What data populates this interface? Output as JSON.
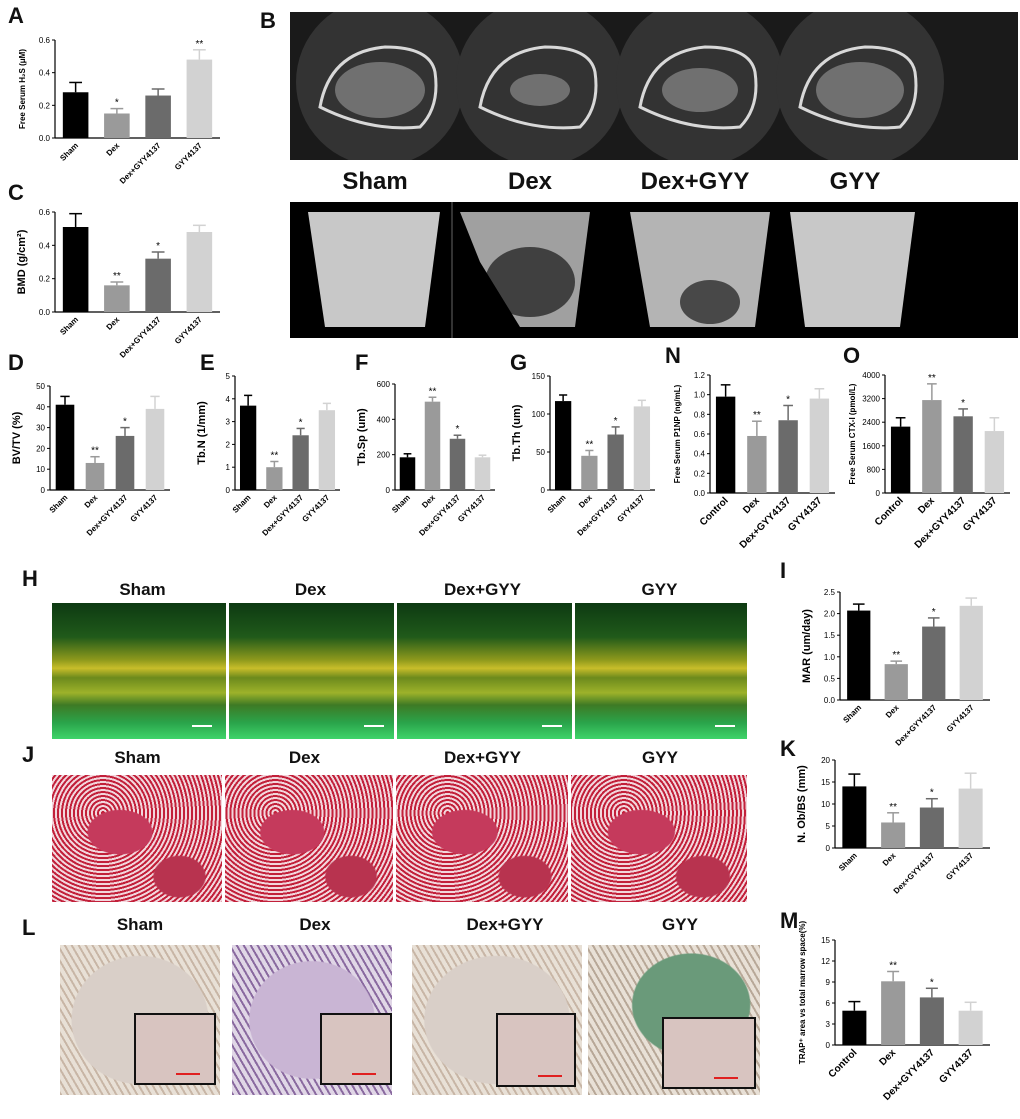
{
  "panel_letters": [
    "A",
    "B",
    "C",
    "D",
    "E",
    "F",
    "G",
    "N",
    "O",
    "H",
    "I",
    "J",
    "K",
    "L",
    "M"
  ],
  "ct_labels": [
    "Sham",
    "Dex",
    "Dex+GYY",
    "GYY"
  ],
  "image_rows": {
    "H": [
      "Sham",
      "Dex",
      "Dex+GYY",
      "GYY"
    ],
    "J": [
      "Sham",
      "Dex",
      "Dex+GYY",
      "GYY"
    ],
    "L": [
      "Sham",
      "Dex",
      "Dex+GYY",
      "GYY"
    ]
  },
  "colors": {
    "bar1": "#000000",
    "bar2": "#9a9a9a",
    "bar3": "#6b6b6b",
    "bar4": "#d2d2d2"
  },
  "chart_data": [
    {
      "id": "A",
      "type": "bar",
      "ylabel": "Free Serum H₂S (μM)",
      "categories": [
        "Sham",
        "Dex",
        "Dex+GYY4137",
        "GYY4137"
      ],
      "values": [
        0.28,
        0.15,
        0.26,
        0.48
      ],
      "errors": [
        0.06,
        0.03,
        0.04,
        0.06
      ],
      "sig": [
        "",
        "*",
        "",
        "**"
      ],
      "ylim": [
        0,
        0.6
      ],
      "yticks": [
        "0.0",
        "0.2",
        "0.4",
        "0.6"
      ]
    },
    {
      "id": "C",
      "type": "bar",
      "ylabel": "BMD (g/cm²)",
      "categories": [
        "Sham",
        "Dex",
        "Dex+GYY4137",
        "GYY4137"
      ],
      "values": [
        0.51,
        0.16,
        0.32,
        0.48
      ],
      "errors": [
        0.08,
        0.02,
        0.04,
        0.04
      ],
      "sig": [
        "",
        "**",
        "*",
        ""
      ],
      "ylim": [
        0,
        0.6
      ],
      "yticks": [
        "0.0",
        "0.2",
        "0.4",
        "0.6"
      ]
    },
    {
      "id": "D",
      "type": "bar",
      "ylabel": "BV/TV  (%)",
      "categories": [
        "Sham",
        "Dex",
        "Dex+GYY4137",
        "GYY4137"
      ],
      "values": [
        41,
        13,
        26,
        39
      ],
      "errors": [
        4,
        3,
        4,
        6
      ],
      "sig": [
        "",
        "**",
        "*",
        ""
      ],
      "ylim": [
        0,
        50
      ],
      "yticks": [
        "0",
        "10",
        "20",
        "30",
        "40",
        "50"
      ]
    },
    {
      "id": "E",
      "type": "bar",
      "ylabel": "Tb.N (1/mm)",
      "categories": [
        "Sham",
        "Dex",
        "Dex+GYY4137",
        "GYY4137"
      ],
      "values": [
        3.7,
        1.0,
        2.4,
        3.5
      ],
      "errors": [
        0.45,
        0.25,
        0.3,
        0.3
      ],
      "sig": [
        "",
        "**",
        "*",
        ""
      ],
      "ylim": [
        0,
        5
      ],
      "yticks": [
        "0",
        "1",
        "2",
        "3",
        "4",
        "5"
      ]
    },
    {
      "id": "F",
      "type": "bar",
      "ylabel": "Tb.Sp (um)",
      "categories": [
        "Sham",
        "Dex",
        "Dex+GYY4137",
        "GYY4137"
      ],
      "values": [
        185,
        500,
        290,
        185
      ],
      "errors": [
        20,
        25,
        20,
        12
      ],
      "sig": [
        "",
        "**",
        "*",
        ""
      ],
      "ylim": [
        0,
        600
      ],
      "yticks": [
        "0",
        "200",
        "400",
        "600"
      ]
    },
    {
      "id": "G",
      "type": "bar",
      "ylabel": "Tb.Th (um)",
      "categories": [
        "Sham",
        "Dex",
        "Dex+GYY4137",
        "GYY4137"
      ],
      "values": [
        117,
        45,
        73,
        110
      ],
      "errors": [
        8,
        7,
        10,
        8
      ],
      "sig": [
        "",
        "**",
        "*",
        ""
      ],
      "ylim": [
        0,
        150
      ],
      "yticks": [
        "0",
        "50",
        "100",
        "150"
      ]
    },
    {
      "id": "N",
      "type": "bar",
      "ylabel": "Free Serum P1NP (ng/mL)",
      "categories": [
        "Control",
        "Dex",
        "Dex+GYY4137",
        "GYY4137"
      ],
      "values": [
        0.98,
        0.58,
        0.74,
        0.96
      ],
      "errors": [
        0.12,
        0.15,
        0.15,
        0.1
      ],
      "sig": [
        "",
        "**",
        "*",
        ""
      ],
      "ylim": [
        0,
        1.2
      ],
      "yticks": [
        "0.0",
        "0.2",
        "0.4",
        "0.6",
        "0.8",
        "1.0",
        "1.2"
      ]
    },
    {
      "id": "O",
      "type": "bar",
      "ylabel": "Free Serum CTX-I (pmol/L)",
      "categories": [
        "Control",
        "Dex",
        "Dex+GYY4137",
        "GYY4137"
      ],
      "values": [
        2250,
        3150,
        2600,
        2100
      ],
      "errors": [
        300,
        550,
        250,
        450
      ],
      "sig": [
        "",
        "**",
        "*",
        ""
      ],
      "ylim": [
        0,
        4000
      ],
      "yticks": [
        "0",
        "800",
        "1600",
        "2400",
        "3200",
        "4000"
      ]
    },
    {
      "id": "I",
      "type": "bar",
      "ylabel": "MAR (um/day)",
      "categories": [
        "Sham",
        "Dex",
        "Dex+GYY4137",
        "GYY4137"
      ],
      "values": [
        2.07,
        0.83,
        1.7,
        2.18
      ],
      "errors": [
        0.15,
        0.07,
        0.2,
        0.18
      ],
      "sig": [
        "",
        "**",
        "*",
        ""
      ],
      "ylim": [
        0,
        2.5
      ],
      "yticks": [
        "0.0",
        "0.5",
        "1.0",
        "1.5",
        "2.0",
        "2.5"
      ]
    },
    {
      "id": "K",
      "type": "bar",
      "ylabel": "N. Ob/BS (mm)",
      "categories": [
        "Sham",
        "Dex",
        "Dex+GYY4137",
        "GYY4137"
      ],
      "values": [
        14,
        5.8,
        9.2,
        13.5
      ],
      "errors": [
        2.8,
        2.2,
        2,
        3.5
      ],
      "sig": [
        "",
        "**",
        "*",
        ""
      ],
      "ylim": [
        0,
        20
      ],
      "yticks": [
        "0",
        "5",
        "10",
        "15",
        "20"
      ]
    },
    {
      "id": "M",
      "type": "bar",
      "ylabel": "TRAP⁺ area vs total marrow space(%)",
      "categories": [
        "Control",
        "Dex",
        "Dex+GYY4137",
        "GYY4137"
      ],
      "values": [
        4.9,
        9.1,
        6.8,
        4.9
      ],
      "errors": [
        1.3,
        1.4,
        1.3,
        1.2
      ],
      "sig": [
        "",
        "**",
        "*",
        ""
      ],
      "ylim": [
        0,
        15
      ],
      "yticks": [
        "0",
        "3",
        "6",
        "9",
        "12",
        "15"
      ]
    }
  ]
}
